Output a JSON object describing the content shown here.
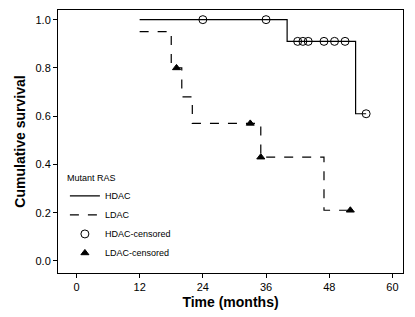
{
  "chart_data": {
    "type": "line",
    "x_label": "Time (months)",
    "y_label": "Cumulative survival",
    "legend_title": "Mutant RAS",
    "legend": "lower left",
    "grid": false,
    "xlim": [
      -3.5,
      62
    ],
    "xticks": [
      0,
      12,
      24,
      36,
      48,
      60
    ],
    "ylim": [
      -0.05,
      1.04
    ],
    "yticks": [
      {
        "value": 0,
        "label": "0.0"
      },
      {
        "value": 0.2,
        "label": "0.2"
      },
      {
        "value": 0.4,
        "label": "0.4"
      },
      {
        "value": 0.6,
        "label": "0.6"
      },
      {
        "value": 0.8,
        "label": "0.8"
      },
      {
        "value": 1,
        "label": "1.0"
      }
    ],
    "series": [
      {
        "name": "HDAC",
        "type": "line",
        "line_style": "solid",
        "color": "#000000",
        "x": [
          12,
          40,
          53,
          55
        ],
        "values": [
          1.0,
          0.91,
          0.61,
          0.61
        ]
      },
      {
        "name": "LDAC",
        "type": "line",
        "line_style": "dash",
        "color": "#000000",
        "x": [
          12,
          18,
          20,
          22,
          35,
          47,
          52
        ],
        "values": [
          0.95,
          0.8,
          0.68,
          0.57,
          0.43,
          0.21,
          0.21
        ]
      },
      {
        "name": "HDAC-censored",
        "type": "scatter",
        "marker": "circle-open",
        "color": "#000000",
        "x": [
          24,
          36,
          42,
          43,
          44,
          47,
          49,
          51,
          55
        ],
        "values": [
          1.0,
          1.0,
          0.91,
          0.91,
          0.91,
          0.91,
          0.91,
          0.91,
          0.61
        ]
      },
      {
        "name": "LDAC-censored",
        "type": "scatter",
        "marker": "triangle-up",
        "color": "#000000",
        "x": [
          19,
          33,
          35,
          52
        ],
        "values": [
          0.8,
          0.57,
          0.43,
          0.21
        ]
      }
    ]
  }
}
